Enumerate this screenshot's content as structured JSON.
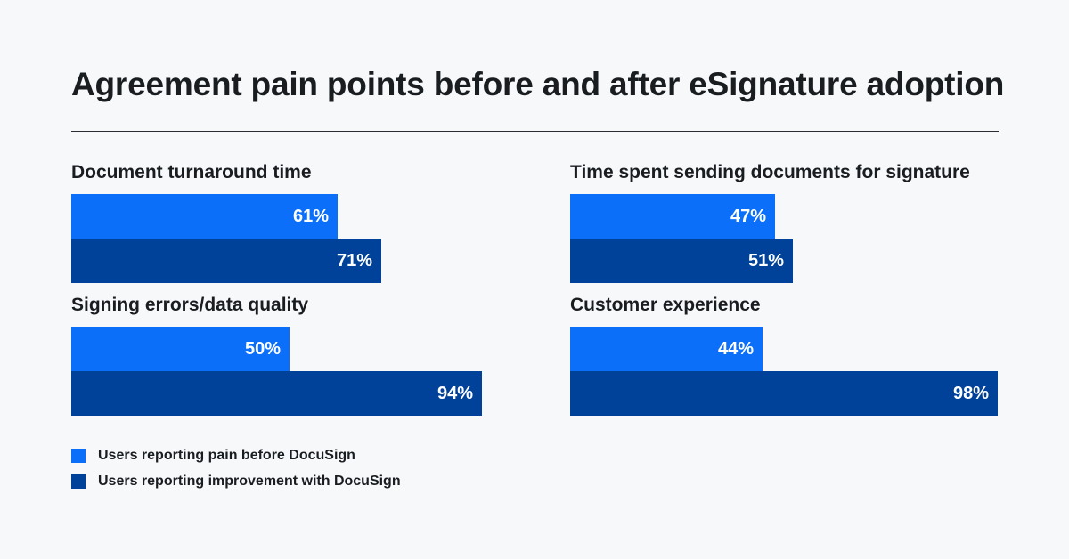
{
  "chart_data": {
    "type": "bar",
    "orientation": "horizontal",
    "title": "Agreement pain points before and after eSignature adoption",
    "x_range": [
      0,
      100
    ],
    "grid": false,
    "legend_placement": "bottom-left",
    "series_meta": [
      {
        "name": "Users reporting pain before DocuSign",
        "color": "#0b6ffa"
      },
      {
        "name": "Users reporting improvement with DocuSign",
        "color": "#00419a"
      }
    ],
    "groups": [
      {
        "label": "Document turnaround time",
        "values": [
          61,
          71
        ],
        "labels": [
          "61%",
          "71%"
        ]
      },
      {
        "label": "Time spent sending documents for signature",
        "values": [
          47,
          51
        ],
        "labels": [
          "47%",
          "51%"
        ]
      },
      {
        "label": "Signing errors/data quality",
        "values": [
          50,
          94
        ],
        "labels": [
          "50%",
          "94%"
        ]
      },
      {
        "label": "Customer experience",
        "values": [
          44,
          98
        ],
        "labels": [
          "44%",
          "98%"
        ]
      }
    ]
  }
}
